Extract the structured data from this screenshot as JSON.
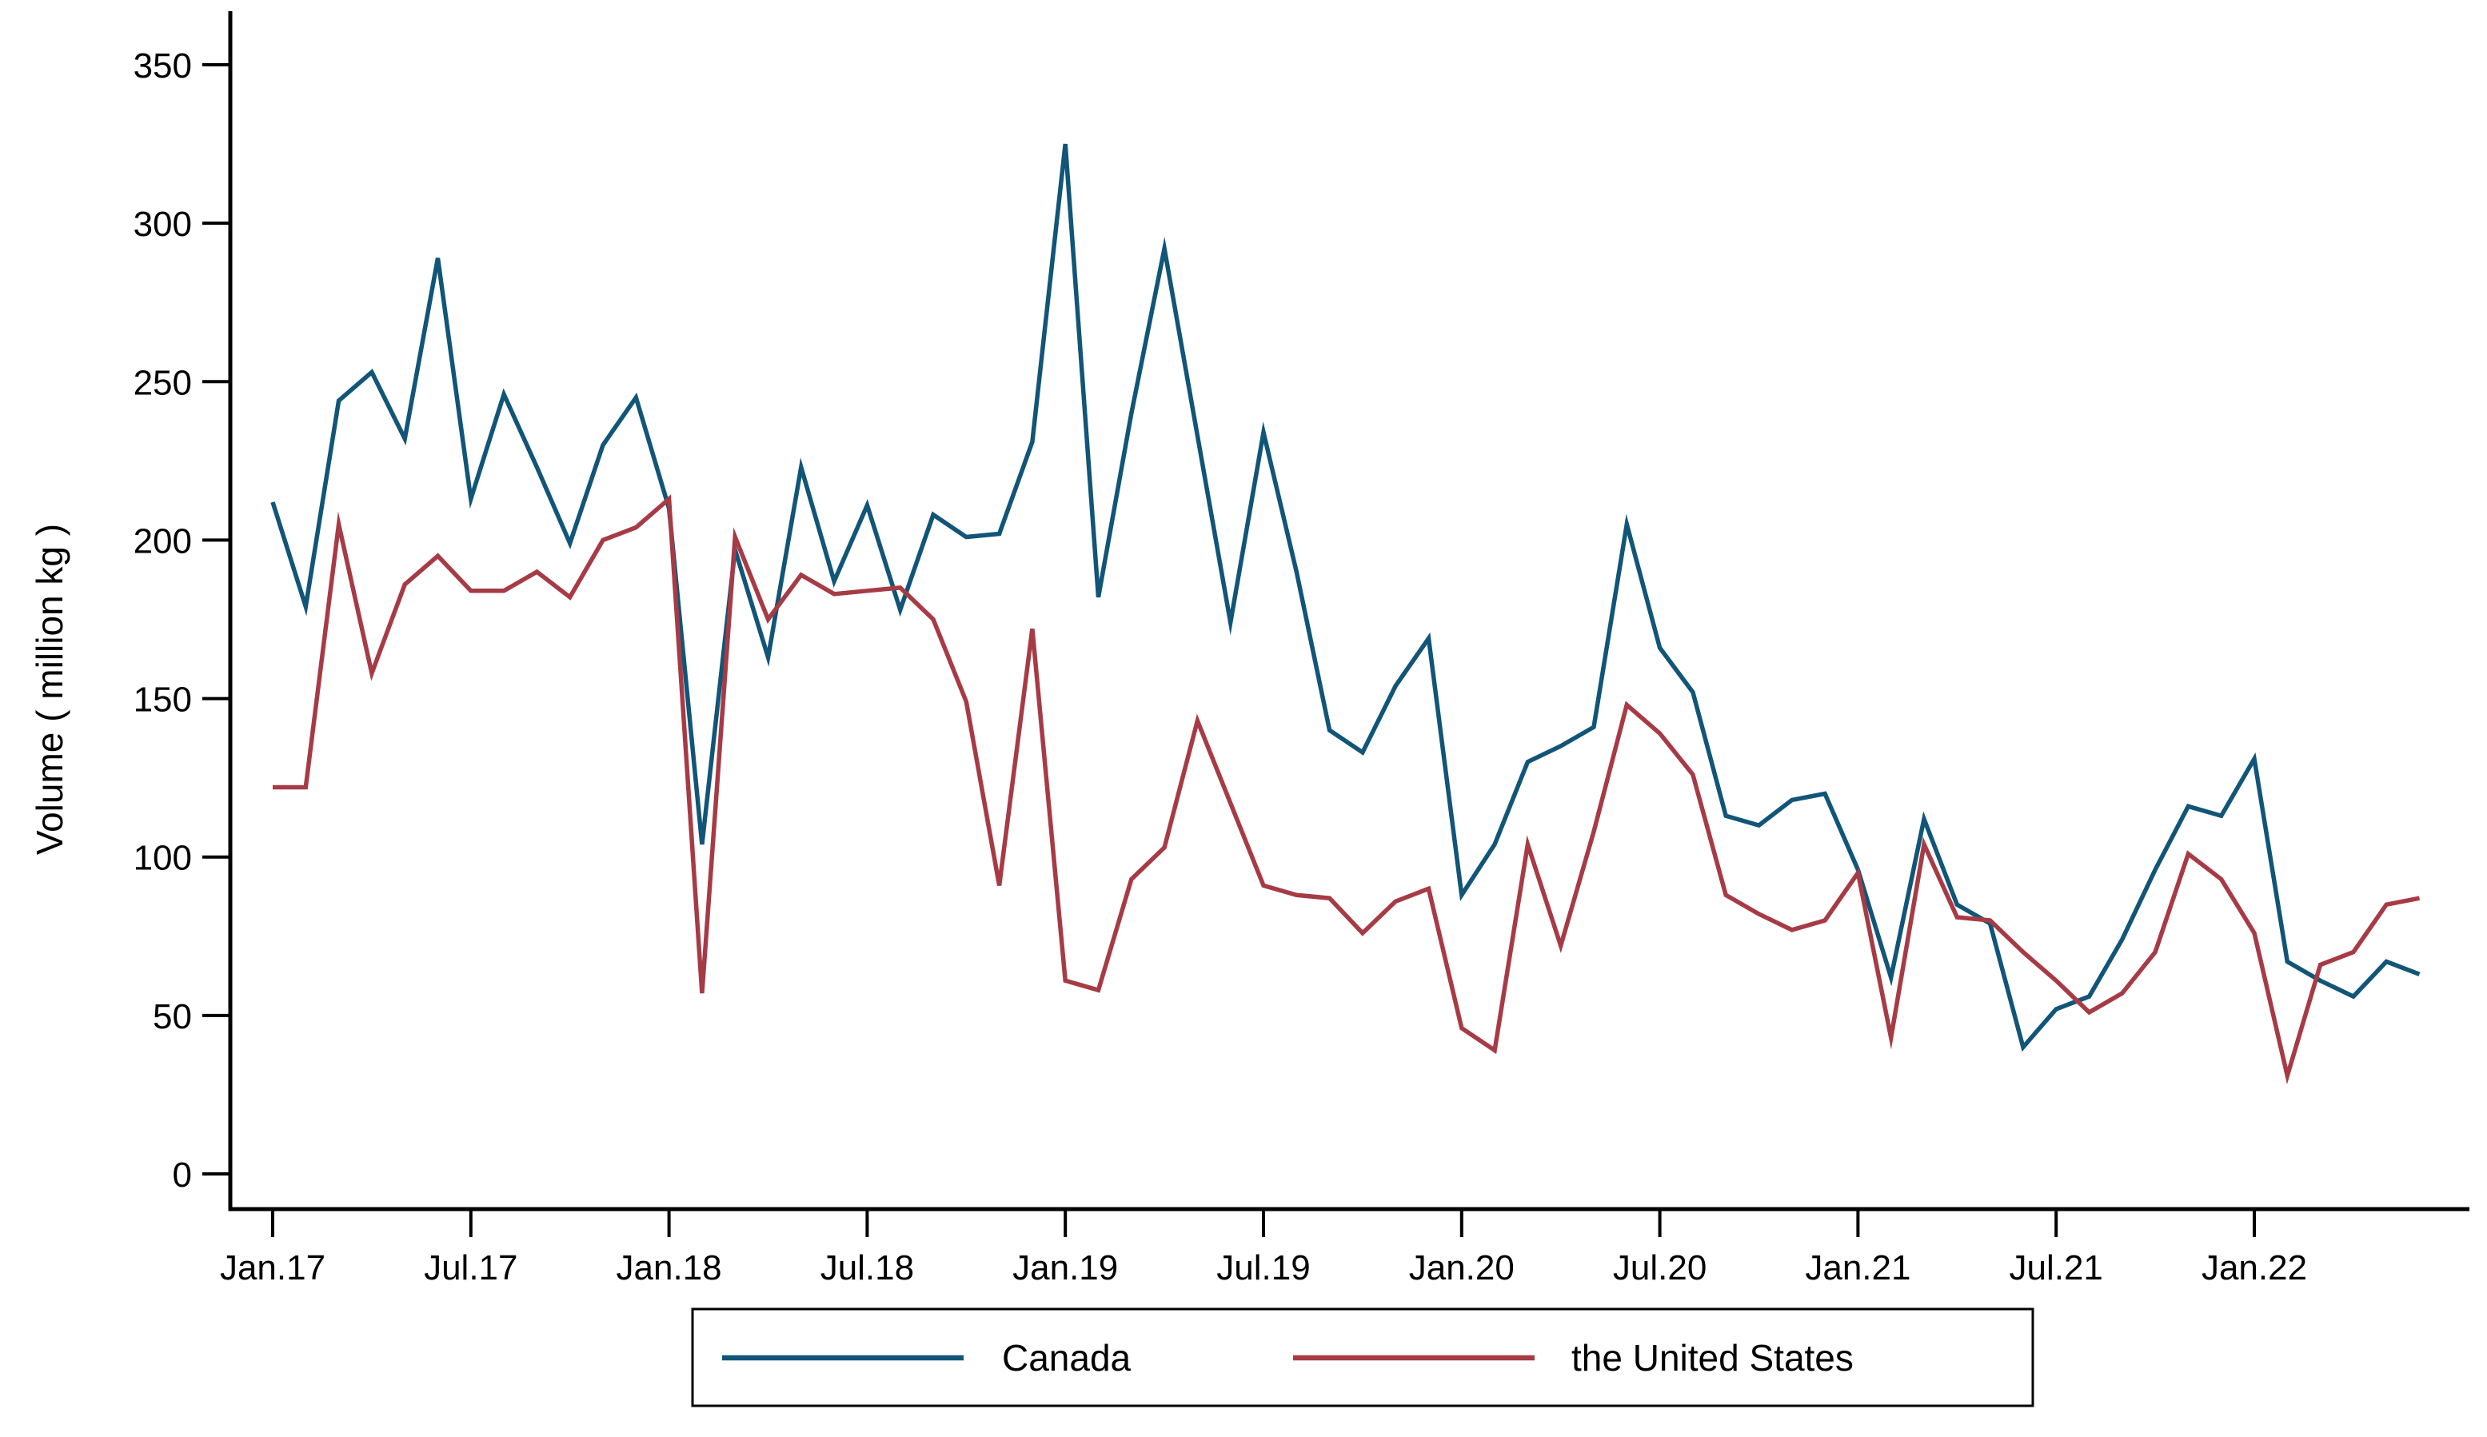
{
  "chart_data": {
    "type": "line",
    "title": "",
    "xlabel": "",
    "ylabel": "Volume ( million kg )",
    "ylim": [
      0,
      350
    ],
    "ytick_step": 50,
    "yticks": [
      0,
      50,
      100,
      150,
      200,
      250,
      300,
      350
    ],
    "xticks": [
      "Jan.17",
      "Jul.17",
      "Jan.18",
      "Jul.18",
      "Jan.19",
      "Jul.19",
      "Jan.20",
      "Jul.20",
      "Jan.21",
      "Jul.21",
      "Jan.22"
    ],
    "xtick_every": 6,
    "grid": false,
    "legend_position": "bottom-outside",
    "x": [
      "Jan.17",
      "Feb.17",
      "Mar.17",
      "Apr.17",
      "May.17",
      "Jun.17",
      "Jul.17",
      "Aug.17",
      "Sep.17",
      "Oct.17",
      "Nov.17",
      "Dec.17",
      "Jan.18",
      "Feb.18",
      "Mar.18",
      "Apr.18",
      "May.18",
      "Jun.18",
      "Jul.18",
      "Aug.18",
      "Sep.18",
      "Oct.18",
      "Nov.18",
      "Dec.18",
      "Jan.19",
      "Feb.19",
      "Mar.19",
      "Apr.19",
      "May.19",
      "Jun.19",
      "Jul.19",
      "Aug.19",
      "Sep.19",
      "Oct.19",
      "Nov.19",
      "Dec.19",
      "Jan.20",
      "Feb.20",
      "Mar.20",
      "Apr.20",
      "May.20",
      "Jun.20",
      "Jul.20",
      "Aug.20",
      "Sep.20",
      "Oct.20",
      "Nov.20",
      "Dec.20",
      "Jan.21",
      "Feb.21",
      "Mar.21",
      "Apr.21",
      "May.21",
      "Jun.21",
      "Jul.21",
      "Aug.21",
      "Sep.21",
      "Oct.21",
      "Nov.21",
      "Dec.21",
      "Jan.22",
      "Feb.22",
      "Mar.22",
      "Apr.22",
      "May.22",
      "Jun.22"
    ],
    "series": [
      {
        "name": "Canada",
        "color": "#115578",
        "values": [
          212,
          179,
          244,
          253,
          232,
          289,
          213,
          246,
          223,
          199,
          230,
          245,
          210,
          104,
          197,
          163,
          223,
          187,
          211,
          178,
          208,
          201,
          202,
          231,
          325,
          182,
          240,
          292,
          233,
          174,
          234,
          190,
          140,
          133,
          154,
          169,
          88,
          104,
          130,
          135,
          141,
          205,
          166,
          152,
          113,
          110,
          118,
          120,
          96,
          62,
          112,
          85,
          79,
          40,
          52,
          56,
          74,
          96,
          116,
          113,
          131,
          67,
          61,
          56,
          67,
          63
        ]
      },
      {
        "name": "the United States",
        "color": "#A73B45",
        "values": [
          122,
          122,
          205,
          158,
          186,
          195,
          184,
          184,
          190,
          182,
          200,
          204,
          213,
          57,
          201,
          175,
          189,
          183,
          184,
          185,
          175,
          149,
          91,
          172,
          61,
          58,
          93,
          103,
          143,
          117,
          91,
          88,
          87,
          76,
          86,
          90,
          46,
          39,
          104,
          72,
          108,
          148,
          139,
          126,
          88,
          82,
          77,
          80,
          95,
          43,
          104,
          81,
          80,
          70,
          61,
          51,
          57,
          70,
          101,
          93,
          76,
          31,
          66,
          70,
          85,
          87
        ]
      }
    ],
    "axis_color": "#000000"
  }
}
